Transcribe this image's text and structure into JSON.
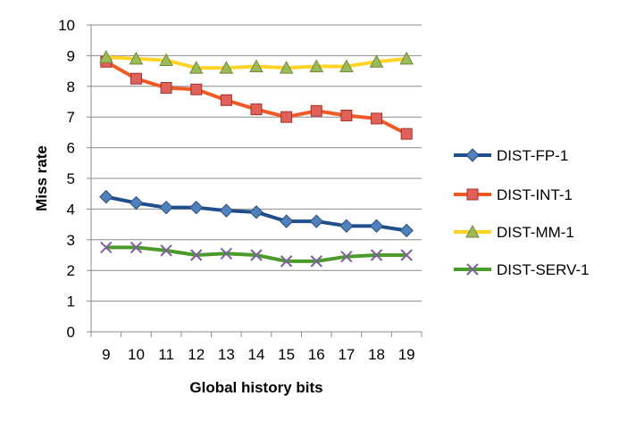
{
  "chart_data": {
    "type": "line",
    "xlabel": "Global history bits",
    "ylabel": "Miss rate",
    "categories": [
      "9",
      "10",
      "11",
      "12",
      "13",
      "14",
      "15",
      "16",
      "17",
      "18",
      "19"
    ],
    "ylim": [
      0,
      10
    ],
    "yticks": [
      "0",
      "1",
      "2",
      "3",
      "4",
      "5",
      "6",
      "7",
      "8",
      "9",
      "10"
    ],
    "grid": "horizontal",
    "legend_position": "right",
    "series": [
      {
        "name": "DIST-FP-1",
        "color": "#1f4e8c",
        "marker": "diamond",
        "marker_color": "#4f81bd",
        "values": [
          4.4,
          4.2,
          4.05,
          4.05,
          3.95,
          3.9,
          3.6,
          3.6,
          3.45,
          3.45,
          3.3
        ]
      },
      {
        "name": "DIST-INT-1",
        "color": "#f15a22",
        "marker": "square",
        "marker_color": "#e0605a",
        "values": [
          8.8,
          8.25,
          7.95,
          7.9,
          7.55,
          7.25,
          7.0,
          7.2,
          7.05,
          6.95,
          6.45
        ]
      },
      {
        "name": "DIST-MM-1",
        "color": "#ffd426",
        "marker": "triangle",
        "marker_color": "#9bbb59",
        "values": [
          8.95,
          8.9,
          8.85,
          8.6,
          8.6,
          8.65,
          8.6,
          8.65,
          8.65,
          8.8,
          8.9
        ]
      },
      {
        "name": "DIST-SERV-1",
        "color": "#4c9b2a",
        "marker": "x",
        "marker_color": "#7f5fa0",
        "values": [
          2.75,
          2.75,
          2.65,
          2.5,
          2.55,
          2.5,
          2.3,
          2.3,
          2.45,
          2.5,
          2.5
        ]
      }
    ]
  }
}
